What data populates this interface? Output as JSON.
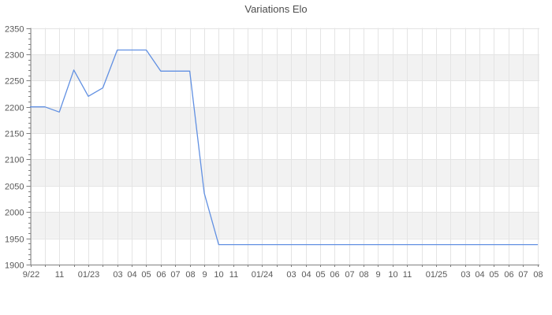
{
  "chart_data": {
    "type": "line",
    "title": "Variations Elo",
    "xlabel": "",
    "ylabel": "",
    "ylim": [
      1900,
      2350
    ],
    "yticks": [
      1900,
      1950,
      2000,
      2050,
      2100,
      2150,
      2200,
      2250,
      2300,
      2350
    ],
    "y_minor_step": 10,
    "grid": true,
    "legend_position": "none",
    "categories": [
      "9/22",
      "",
      "11",
      "",
      "01/23",
      "",
      "03",
      "04",
      "05",
      "06",
      "07",
      "08",
      "9",
      "10",
      "11",
      "",
      "01/24",
      "",
      "03",
      "04",
      "05",
      "06",
      "07",
      "08",
      "9",
      "10",
      "11",
      "",
      "01/25",
      "",
      "03",
      "04",
      "05",
      "06",
      "07",
      "08"
    ],
    "series": [
      {
        "name": "Elo",
        "values": [
          2200,
          2200,
          2190,
          2270,
          2220,
          2236,
          2308,
          2308,
          2308,
          2268,
          2268,
          2268,
          2036,
          1938,
          1938,
          1938,
          1938,
          1938,
          1938,
          1938,
          1938,
          1938,
          1938,
          1938,
          1938,
          1938,
          1938,
          1938,
          1938,
          1938,
          1938,
          1938,
          1938,
          1938,
          1938,
          1938
        ]
      }
    ],
    "colors": {
      "series_line": "#6190e2",
      "band_fill": "#f2f2f2",
      "gridline": "#e4e4e4",
      "axis_line": "#808080",
      "tick_mark": "#808080",
      "tick_label": "#595959",
      "title_text": "#4d4d4d",
      "background": "#ffffff"
    }
  }
}
